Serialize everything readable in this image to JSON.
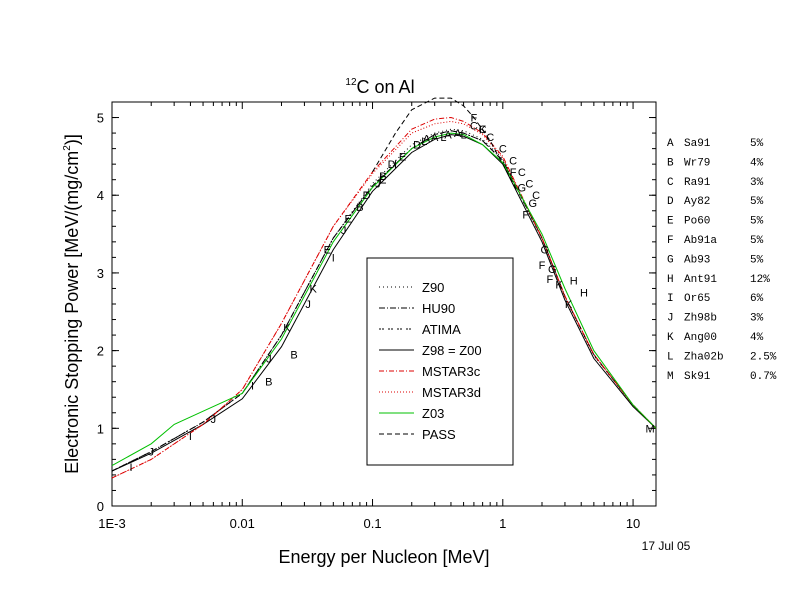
{
  "chart_data": {
    "type": "line",
    "title": "C on Al",
    "title_superscript": "12",
    "xlabel": "Energy per Nucleon [MeV]",
    "ylabel": "Electronic Stopping Power [MeV/(mg/cm",
    "ylabel_superscript": "2",
    "ylabel_end": ")]",
    "x_scale": "log",
    "xlim": [
      0.001,
      15
    ],
    "ylim": [
      0,
      5.2
    ],
    "x_ticks": [
      0.001,
      0.01,
      0.1,
      1,
      10
    ],
    "x_tick_labels": [
      "1E-3",
      "0.01",
      "0.1",
      "1",
      "10"
    ],
    "y_ticks": [
      0,
      1,
      2,
      3,
      4,
      5
    ],
    "y_tick_labels": [
      "0",
      "1",
      "2",
      "3",
      "4",
      "5"
    ],
    "date_label": "17 Jul 05",
    "grid": false,
    "legend_position": "center",
    "series": [
      {
        "name": "Z90",
        "color": "#000000",
        "dash": "1,3",
        "x": [
          0.001,
          0.002,
          0.005,
          0.01,
          0.02,
          0.05,
          0.1,
          0.2,
          0.3,
          0.4,
          0.5,
          0.7,
          1,
          2,
          3,
          5,
          10,
          15
        ],
        "y": [
          0.45,
          0.7,
          1.08,
          1.45,
          2.2,
          3.45,
          4.15,
          4.65,
          4.8,
          4.85,
          4.83,
          4.72,
          4.47,
          3.45,
          2.7,
          1.95,
          1.3,
          1.0
        ]
      },
      {
        "name": "HU90",
        "color": "#000000",
        "dash": "6,2,1,2",
        "x": [
          0.001,
          0.002,
          0.005,
          0.01,
          0.02,
          0.05,
          0.1,
          0.2,
          0.3,
          0.4,
          0.5,
          0.7,
          1,
          2,
          3,
          5,
          10,
          15
        ],
        "y": [
          0.45,
          0.7,
          1.08,
          1.45,
          2.2,
          3.45,
          4.12,
          4.6,
          4.78,
          4.83,
          4.8,
          4.7,
          4.45,
          3.45,
          2.7,
          1.95,
          1.3,
          1.0
        ]
      },
      {
        "name": "ATIMA",
        "color": "#000000",
        "dash": "2,1,2,4",
        "x": [
          0.001,
          0.002,
          0.005,
          0.01,
          0.02,
          0.05,
          0.1,
          0.2,
          0.3,
          0.4,
          0.5,
          0.7,
          1,
          2,
          3,
          5,
          10,
          15
        ],
        "y": [
          0.45,
          0.7,
          1.08,
          1.45,
          2.2,
          3.45,
          4.12,
          4.6,
          4.78,
          4.83,
          4.8,
          4.7,
          4.44,
          3.44,
          2.69,
          1.94,
          1.3,
          1.0
        ]
      },
      {
        "name": "Z98 = Z00",
        "color": "#000000",
        "dash": "",
        "x": [
          0.001,
          0.002,
          0.005,
          0.01,
          0.02,
          0.05,
          0.1,
          0.2,
          0.3,
          0.4,
          0.5,
          0.7,
          1,
          2,
          3,
          5,
          10,
          15
        ],
        "y": [
          0.45,
          0.68,
          1.05,
          1.38,
          2.05,
          3.3,
          4.05,
          4.55,
          4.72,
          4.78,
          4.76,
          4.65,
          4.4,
          3.4,
          2.65,
          1.9,
          1.28,
          1.0
        ]
      },
      {
        "name": "MSTAR3c",
        "color": "#dd0000",
        "dash": "5,2,1,2",
        "x": [
          0.001,
          0.002,
          0.005,
          0.01,
          0.02,
          0.05,
          0.1,
          0.2,
          0.3,
          0.4,
          0.5,
          0.7,
          1,
          2,
          3,
          5,
          10,
          15
        ],
        "y": [
          0.36,
          0.6,
          1.05,
          1.5,
          2.35,
          3.6,
          4.3,
          4.85,
          4.98,
          5.0,
          4.95,
          4.8,
          4.5,
          3.45,
          2.7,
          1.95,
          1.3,
          1.0
        ]
      },
      {
        "name": "MSTAR3d",
        "color": "#dd0000",
        "dash": "1,2",
        "x": [
          0.001,
          0.002,
          0.005,
          0.01,
          0.02,
          0.05,
          0.1,
          0.2,
          0.3,
          0.4,
          0.5,
          0.7,
          1,
          2,
          3,
          5,
          10,
          15
        ],
        "y": [
          0.36,
          0.6,
          1.05,
          1.5,
          2.35,
          3.6,
          4.28,
          4.8,
          4.92,
          4.95,
          4.92,
          4.78,
          4.48,
          3.45,
          2.7,
          1.95,
          1.3,
          1.0
        ]
      },
      {
        "name": "Z03",
        "color": "#00c000",
        "dash": "",
        "x": [
          0.001,
          0.002,
          0.003,
          0.005,
          0.01,
          0.02,
          0.05,
          0.1,
          0.2,
          0.3,
          0.4,
          0.5,
          0.7,
          1,
          2,
          3,
          5,
          10,
          15
        ],
        "y": [
          0.52,
          0.8,
          1.05,
          1.22,
          1.45,
          2.15,
          3.4,
          4.1,
          4.6,
          4.75,
          4.8,
          4.78,
          4.65,
          4.42,
          3.5,
          2.8,
          2.0,
          1.3,
          1.0
        ]
      },
      {
        "name": "PASS",
        "color": "#000000",
        "dash": "5,3",
        "x": [
          0.1,
          0.15,
          0.2,
          0.3,
          0.4,
          0.5,
          0.6,
          0.8,
          1,
          1.3
        ],
        "y": [
          4.3,
          4.8,
          5.1,
          5.25,
          5.25,
          5.15,
          5.0,
          4.7,
          4.4,
          4.05
        ]
      }
    ],
    "points": [
      {
        "label": "A",
        "x": 0.26,
        "y": 4.73
      },
      {
        "label": "A",
        "x": 0.3,
        "y": 4.75
      },
      {
        "label": "A",
        "x": 0.38,
        "y": 4.78
      },
      {
        "label": "A",
        "x": 0.45,
        "y": 4.8
      },
      {
        "label": "B",
        "x": 0.016,
        "y": 1.6
      },
      {
        "label": "B",
        "x": 0.025,
        "y": 1.95
      },
      {
        "label": "B",
        "x": 0.08,
        "y": 3.85
      },
      {
        "label": "B",
        "x": 0.12,
        "y": 4.25
      },
      {
        "label": "C",
        "x": 0.6,
        "y": 4.9
      },
      {
        "label": "C",
        "x": 0.7,
        "y": 4.85
      },
      {
        "label": "C",
        "x": 0.8,
        "y": 4.75
      },
      {
        "label": "C",
        "x": 1.0,
        "y": 4.6
      },
      {
        "label": "C",
        "x": 1.2,
        "y": 4.45
      },
      {
        "label": "C",
        "x": 1.4,
        "y": 4.3
      },
      {
        "label": "C",
        "x": 1.6,
        "y": 4.15
      },
      {
        "label": "C",
        "x": 1.8,
        "y": 4.0
      },
      {
        "label": "D",
        "x": 0.09,
        "y": 4.0
      },
      {
        "label": "D",
        "x": 0.14,
        "y": 4.4
      },
      {
        "label": "D",
        "x": 0.22,
        "y": 4.65
      },
      {
        "label": "E",
        "x": 0.045,
        "y": 3.3
      },
      {
        "label": "E",
        "x": 0.065,
        "y": 3.7
      },
      {
        "label": "E",
        "x": 0.12,
        "y": 4.2
      },
      {
        "label": "E",
        "x": 0.17,
        "y": 4.5
      },
      {
        "label": "F",
        "x": 0.6,
        "y": 5.0
      },
      {
        "label": "F",
        "x": 1.5,
        "y": 3.75
      },
      {
        "label": "F",
        "x": 2.0,
        "y": 3.1
      },
      {
        "label": "F",
        "x": 2.3,
        "y": 2.92
      },
      {
        "label": "F",
        "x": 1.2,
        "y": 4.3
      },
      {
        "label": "G",
        "x": 1.4,
        "y": 4.1
      },
      {
        "label": "G",
        "x": 1.7,
        "y": 3.9
      },
      {
        "label": "G",
        "x": 2.1,
        "y": 3.3
      },
      {
        "label": "G",
        "x": 2.4,
        "y": 3.05
      },
      {
        "label": "H",
        "x": 3.5,
        "y": 2.9
      },
      {
        "label": "H",
        "x": 4.2,
        "y": 2.75
      },
      {
        "label": "I",
        "x": 0.0014,
        "y": 0.5
      },
      {
        "label": "I",
        "x": 0.004,
        "y": 0.9
      },
      {
        "label": "I",
        "x": 0.012,
        "y": 1.55
      },
      {
        "label": "I",
        "x": 0.05,
        "y": 3.2
      },
      {
        "label": "I",
        "x": 0.15,
        "y": 4.4
      },
      {
        "label": "J",
        "x": 0.002,
        "y": 0.7
      },
      {
        "label": "J",
        "x": 0.006,
        "y": 1.12
      },
      {
        "label": "J",
        "x": 0.016,
        "y": 1.9
      },
      {
        "label": "J",
        "x": 0.032,
        "y": 2.6
      },
      {
        "label": "J",
        "x": 0.06,
        "y": 3.55
      },
      {
        "label": "J",
        "x": 0.11,
        "y": 4.15
      },
      {
        "label": "K",
        "x": 0.022,
        "y": 2.3
      },
      {
        "label": "K",
        "x": 0.035,
        "y": 2.8
      },
      {
        "label": "K",
        "x": 0.7,
        "y": 4.85
      },
      {
        "label": "K",
        "x": 2.7,
        "y": 2.85
      },
      {
        "label": "K",
        "x": 3.2,
        "y": 2.6
      },
      {
        "label": "L",
        "x": 0.25,
        "y": 4.7
      },
      {
        "label": "L",
        "x": 0.35,
        "y": 4.75
      },
      {
        "label": "L",
        "x": 0.5,
        "y": 4.78
      },
      {
        "label": "M",
        "x": 13.5,
        "y": 1.0
      }
    ],
    "legend_entries": [
      {
        "label": "Z90",
        "color": "#000000",
        "dash": "1,3"
      },
      {
        "label": "HU90",
        "color": "#000000",
        "dash": "6,2,1,2"
      },
      {
        "label": "ATIMA",
        "color": "#000000",
        "dash": "2,1,2,4"
      },
      {
        "label": "Z98 = Z00",
        "color": "#000000",
        "dash": ""
      },
      {
        "label": "MSTAR3c",
        "color": "#dd0000",
        "dash": "5,2,1,2"
      },
      {
        "label": "MSTAR3d",
        "color": "#dd0000",
        "dash": "1,2"
      },
      {
        "label": "Z03",
        "color": "#00c000",
        "dash": ""
      },
      {
        "label": "PASS",
        "color": "#000000",
        "dash": "5,3"
      }
    ],
    "references": [
      {
        "letter": "A",
        "ref": "Sa91",
        "err": "5%"
      },
      {
        "letter": "B",
        "ref": "Wr79",
        "err": "4%"
      },
      {
        "letter": "C",
        "ref": "Ra91",
        "err": "3%"
      },
      {
        "letter": "D",
        "ref": "Ay82",
        "err": "5%"
      },
      {
        "letter": "E",
        "ref": "Po60",
        "err": "5%"
      },
      {
        "letter": "F",
        "ref": "Ab91a",
        "err": "5%"
      },
      {
        "letter": "G",
        "ref": "Ab93",
        "err": "5%"
      },
      {
        "letter": "H",
        "ref": "Ant91",
        "err": "12%"
      },
      {
        "letter": "I",
        "ref": "Or65",
        "err": "6%"
      },
      {
        "letter": "J",
        "ref": "Zh98b",
        "err": "3%"
      },
      {
        "letter": "K",
        "ref": "Ang00",
        "err": "4%"
      },
      {
        "letter": "L",
        "ref": "Zha02b",
        "err": "2.5%"
      },
      {
        "letter": "M",
        "ref": "Sk91",
        "err": "0.7%"
      }
    ]
  }
}
